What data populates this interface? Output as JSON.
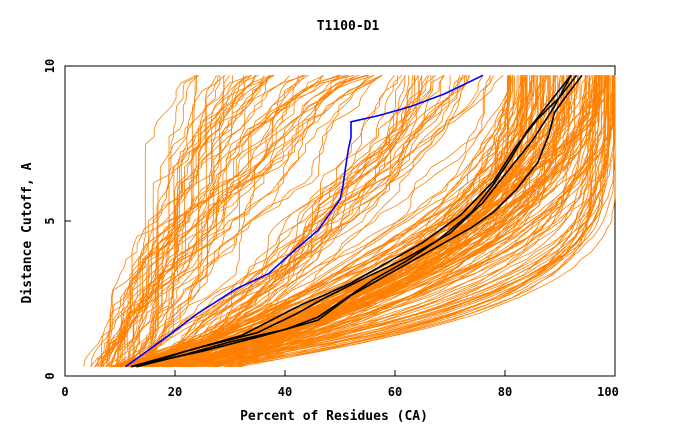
{
  "chart_data": {
    "type": "line",
    "title": "T1100-D1",
    "xlabel": "Percent of Residues (CA)",
    "ylabel": "Distance Cutoff, A",
    "xlim": [
      0,
      100
    ],
    "ylim": [
      0,
      10
    ],
    "x_ticks": [
      "0",
      "20",
      "40",
      "60",
      "80",
      "100"
    ],
    "y_ticks": [
      "0",
      "5",
      "10"
    ],
    "grid": false,
    "colors": {
      "background_models": "#ff8000",
      "highlight_blue": "#0000ff",
      "highlight_black": "#000000",
      "axes": "#000000"
    },
    "series": [
      {
        "role": "highlight-blue",
        "color": "#0000ff",
        "x": [
          11,
          18,
          24,
          31,
          37,
          42,
          46,
          50,
          50.5,
          51,
          51.5,
          52,
          52,
          57,
          63,
          69,
          76
        ],
        "y": [
          0.3,
          1.2,
          2.0,
          2.8,
          3.3,
          4.1,
          4.7,
          5.7,
          6.1,
          6.7,
          7.3,
          7.7,
          8.2,
          8.4,
          8.7,
          9.1,
          9.7
        ]
      },
      {
        "role": "highlight-black",
        "color": "#000000",
        "x": [
          13,
          22,
          32,
          43,
          47,
          52,
          58,
          65,
          72,
          78,
          82,
          86,
          90,
          93
        ],
        "y": [
          0.3,
          0.8,
          1.3,
          2.3,
          2.6,
          3.0,
          3.6,
          4.3,
          5.2,
          6.3,
          7.4,
          8.3,
          9.0,
          9.7
        ]
      },
      {
        "role": "highlight-black",
        "color": "#000000",
        "x": [
          12,
          24,
          35,
          42,
          47,
          55,
          62,
          70,
          76,
          80,
          85,
          89,
          92
        ],
        "y": [
          0.3,
          0.9,
          1.4,
          2.0,
          2.5,
          3.2,
          3.8,
          4.6,
          5.6,
          6.5,
          7.6,
          8.7,
          9.7
        ]
      },
      {
        "role": "highlight-black",
        "color": "#000000",
        "x": [
          12,
          25,
          36,
          46,
          52,
          60,
          68,
          74,
          78,
          82,
          86,
          88,
          89,
          91,
          94
        ],
        "y": [
          0.3,
          0.8,
          1.3,
          1.8,
          2.6,
          3.4,
          4.2,
          4.8,
          5.3,
          6.0,
          6.9,
          7.8,
          8.5,
          9.0,
          9.7
        ]
      },
      {
        "role": "highlight-black",
        "color": "#000000",
        "x": [
          13,
          22,
          30,
          40,
          46,
          51,
          56,
          62,
          68,
          74,
          78,
          81,
          84,
          88,
          92
        ],
        "y": [
          0.3,
          0.7,
          1.1,
          1.5,
          1.9,
          2.5,
          3.1,
          3.7,
          4.4,
          5.3,
          6.2,
          7.0,
          7.9,
          8.8,
          9.7
        ]
      }
    ],
    "background_models_note": "Several hundred orange model curves, each monotonic from ~0.3 A to ~9.7 A; left edges range 4–56% at top, tail reaching 100%"
  }
}
